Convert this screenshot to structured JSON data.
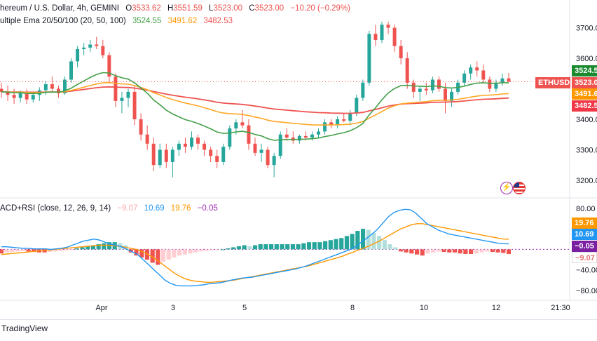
{
  "legend": {
    "title": "hereum / U.S. Dollar, 4h, GEMINI",
    "o_label": "O",
    "o": "3533.62",
    "h_label": "H",
    "h": "3551.59",
    "l_label": "L",
    "l": "3523.00",
    "c_label": "C",
    "c": "3523.00",
    "chg": "−10.20 (−0.29%)",
    "ema_name": "ultiple Ema 20/50/100 (20, 50, 100)",
    "ema20": "3524.55",
    "ema50": "3491.62",
    "ema100": "3482.53",
    "osc_name": "ACD+RSI (close, 12, 26, 9, 14)",
    "osc_v1": "−9.07",
    "osc_v2": "10.69",
    "osc_v3": "19.76",
    "osc_v4": "−0.05"
  },
  "symbol_tag": "ETHUSD",
  "price_tags": {
    "ema20": "3524.5",
    "last": "3523.0",
    "ema50": "3491.6",
    "ema100": "3482.5"
  },
  "osc_tags": {
    "v3": "19.76",
    "v2": "10.69",
    "v4": "−0.05",
    "v1": "−9.07"
  },
  "brand": "TradingView",
  "colors": {
    "up": "#26a69a",
    "down": "#ef5350",
    "ema20": "#43a047",
    "ema50": "#ffa726",
    "ema100": "#ef5350",
    "macd": "#2196f3",
    "signal": "#ff9800",
    "hist_pos": "#26a69a",
    "hist_neg": "#ef5350"
  },
  "chart_data": [
    {
      "type": "candlestick",
      "title": "hereum / U.S. Dollar, 4h, GEMINI",
      "yticks": [
        "3700.00",
        "3600.00",
        "3500.00",
        "3400.00",
        "3300.00",
        "3200.00"
      ],
      "ylim": [
        3170,
        3745
      ],
      "xticks": [
        "Apr",
        "3",
        "5",
        "8",
        "10",
        "12",
        "21:30"
      ],
      "candles": [
        [
          3500,
          3520,
          3470,
          3490
        ],
        [
          3490,
          3510,
          3460,
          3480
        ],
        [
          3480,
          3500,
          3450,
          3470
        ],
        [
          3470,
          3495,
          3455,
          3485
        ],
        [
          3485,
          3500,
          3450,
          3465
        ],
        [
          3465,
          3490,
          3455,
          3480
        ],
        [
          3480,
          3505,
          3460,
          3495
        ],
        [
          3495,
          3525,
          3480,
          3515
        ],
        [
          3515,
          3540,
          3490,
          3500
        ],
        [
          3500,
          3510,
          3470,
          3485
        ],
        [
          3485,
          3540,
          3480,
          3530
        ],
        [
          3530,
          3600,
          3520,
          3590
        ],
        [
          3590,
          3640,
          3570,
          3630
        ],
        [
          3630,
          3650,
          3610,
          3635
        ],
        [
          3635,
          3660,
          3620,
          3645
        ],
        [
          3645,
          3670,
          3630,
          3640
        ],
        [
          3640,
          3660,
          3600,
          3610
        ],
        [
          3610,
          3620,
          3520,
          3540
        ],
        [
          3540,
          3550,
          3440,
          3460
        ],
        [
          3460,
          3490,
          3420,
          3470
        ],
        [
          3470,
          3500,
          3440,
          3490
        ],
        [
          3490,
          3510,
          3380,
          3400
        ],
        [
          3400,
          3420,
          3330,
          3350
        ],
        [
          3350,
          3380,
          3300,
          3320
        ],
        [
          3320,
          3340,
          3230,
          3250
        ],
        [
          3250,
          3320,
          3240,
          3300
        ],
        [
          3300,
          3320,
          3240,
          3260
        ],
        [
          3260,
          3310,
          3210,
          3300
        ],
        [
          3300,
          3330,
          3280,
          3320
        ],
        [
          3320,
          3340,
          3290,
          3310
        ],
        [
          3310,
          3360,
          3300,
          3340
        ],
        [
          3340,
          3350,
          3300,
          3320
        ],
        [
          3320,
          3330,
          3280,
          3300
        ],
        [
          3300,
          3310,
          3260,
          3280
        ],
        [
          3280,
          3300,
          3240,
          3260
        ],
        [
          3260,
          3320,
          3250,
          3310
        ],
        [
          3310,
          3380,
          3300,
          3370
        ],
        [
          3370,
          3400,
          3350,
          3390
        ],
        [
          3390,
          3430,
          3370,
          3380
        ],
        [
          3380,
          3400,
          3300,
          3320
        ],
        [
          3320,
          3340,
          3280,
          3290
        ],
        [
          3290,
          3320,
          3260,
          3300
        ],
        [
          3300,
          3310,
          3240,
          3250
        ],
        [
          3250,
          3290,
          3210,
          3280
        ],
        [
          3280,
          3360,
          3270,
          3350
        ],
        [
          3350,
          3370,
          3330,
          3340
        ],
        [
          3340,
          3360,
          3320,
          3330
        ],
        [
          3330,
          3350,
          3320,
          3345
        ],
        [
          3345,
          3360,
          3330,
          3340
        ],
        [
          3340,
          3360,
          3330,
          3350
        ],
        [
          3350,
          3370,
          3340,
          3360
        ],
        [
          3360,
          3400,
          3350,
          3390
        ],
        [
          3390,
          3400,
          3370,
          3380
        ],
        [
          3380,
          3410,
          3370,
          3400
        ],
        [
          3400,
          3420,
          3390,
          3395
        ],
        [
          3395,
          3430,
          3380,
          3420
        ],
        [
          3420,
          3480,
          3410,
          3470
        ],
        [
          3470,
          3530,
          3460,
          3520
        ],
        [
          3520,
          3690,
          3510,
          3680
        ],
        [
          3680,
          3710,
          3640,
          3660
        ],
        [
          3660,
          3720,
          3650,
          3710
        ],
        [
          3710,
          3720,
          3680,
          3700
        ],
        [
          3700,
          3710,
          3620,
          3640
        ],
        [
          3640,
          3660,
          3580,
          3600
        ],
        [
          3600,
          3620,
          3500,
          3520
        ],
        [
          3520,
          3530,
          3470,
          3490
        ],
        [
          3490,
          3510,
          3460,
          3500
        ],
        [
          3500,
          3520,
          3480,
          3495
        ],
        [
          3495,
          3540,
          3485,
          3530
        ],
        [
          3530,
          3540,
          3490,
          3500
        ],
        [
          3500,
          3520,
          3420,
          3460
        ],
        [
          3460,
          3500,
          3440,
          3490
        ],
        [
          3490,
          3530,
          3480,
          3520
        ],
        [
          3520,
          3560,
          3510,
          3550
        ],
        [
          3550,
          3580,
          3530,
          3570
        ],
        [
          3570,
          3590,
          3540,
          3560
        ],
        [
          3560,
          3580,
          3520,
          3530
        ],
        [
          3530,
          3540,
          3490,
          3500
        ],
        [
          3500,
          3530,
          3490,
          3520
        ],
        [
          3520,
          3550,
          3510,
          3534
        ],
        [
          3534,
          3552,
          3523,
          3523
        ]
      ]
    },
    {
      "type": "line+bar",
      "title": "ACD+RSI (close, 12, 26, 9, 14)",
      "yticks": [
        "80.00",
        "40.00",
        "−40.00",
        "−80.00"
      ],
      "ylim": [
        -95,
        92
      ],
      "series": [
        {
          "name": "MACD",
          "values": [
            5,
            5,
            4,
            3,
            2,
            2,
            1,
            1,
            1,
            0,
            1,
            2,
            4,
            8,
            12,
            16,
            18,
            20,
            18,
            14,
            10,
            8,
            5,
            0,
            -5,
            -10,
            -20,
            -30,
            -40,
            -50,
            -60,
            -66,
            -70,
            -71,
            -71,
            -71,
            -70,
            -69,
            -67,
            -66,
            -65,
            -63,
            -60,
            -58,
            -56,
            -55,
            -54,
            -52,
            -50,
            -48,
            -46,
            -44,
            -42,
            -40,
            -38,
            -35,
            -32,
            -28,
            -24,
            -20,
            -16,
            -12,
            -8,
            -4,
            0,
            6,
            14,
            22,
            30,
            40,
            52,
            64,
            72,
            76,
            78,
            77,
            70,
            60,
            50,
            44,
            38,
            34,
            30,
            28,
            26,
            24,
            22,
            20,
            18,
            16,
            14,
            12,
            11,
            10.7
          ]
        },
        {
          "name": "Signal",
          "values": [
            -10,
            -9,
            -8,
            -7,
            -6,
            -5,
            -4,
            -3,
            -2,
            -1,
            0,
            1,
            2,
            3,
            4,
            5,
            6,
            7,
            8,
            8,
            8,
            7,
            6,
            4,
            2,
            0,
            -4,
            -9,
            -15,
            -22,
            -30,
            -38,
            -46,
            -52,
            -57,
            -60,
            -62,
            -63,
            -64,
            -64,
            -63,
            -62,
            -61,
            -60,
            -58,
            -56,
            -54,
            -52,
            -50,
            -48,
            -46,
            -44,
            -42,
            -40,
            -38,
            -36,
            -34,
            -32,
            -29,
            -26,
            -23,
            -20,
            -17,
            -14,
            -10,
            -6,
            -2,
            2,
            6,
            11,
            16,
            22,
            28,
            34,
            40,
            44,
            48,
            50,
            50,
            48,
            46,
            44,
            42,
            40,
            38,
            36,
            34,
            32,
            30,
            28,
            26,
            24,
            22,
            20,
            19.8
          ]
        },
        {
          "name": "Histogram",
          "values": [
            -8,
            -6,
            -5,
            -4,
            -3,
            -4,
            -5,
            -6,
            -6,
            -5,
            -4,
            -3,
            -2,
            -1,
            2,
            4,
            6,
            8,
            10,
            12,
            14,
            14,
            12,
            8,
            -6,
            -12,
            -16,
            -20,
            -26,
            -30,
            -24,
            -20,
            -16,
            -12,
            -10,
            -8,
            -6,
            -4,
            -3,
            -2,
            -1,
            0,
            2,
            4,
            6,
            8,
            6,
            8,
            10,
            10,
            10,
            10,
            10,
            10,
            10,
            10,
            12,
            14,
            14,
            14,
            16,
            18,
            20,
            22,
            26,
            30,
            36,
            40,
            38,
            32,
            26,
            18,
            10,
            4,
            -4,
            -6,
            -8,
            -10,
            -12,
            -8,
            -6,
            -4,
            -5,
            -6,
            -6,
            -8,
            -9,
            -9,
            -8,
            -6,
            -4,
            -5,
            -6,
            -7,
            -9.07
          ]
        }
      ]
    }
  ]
}
